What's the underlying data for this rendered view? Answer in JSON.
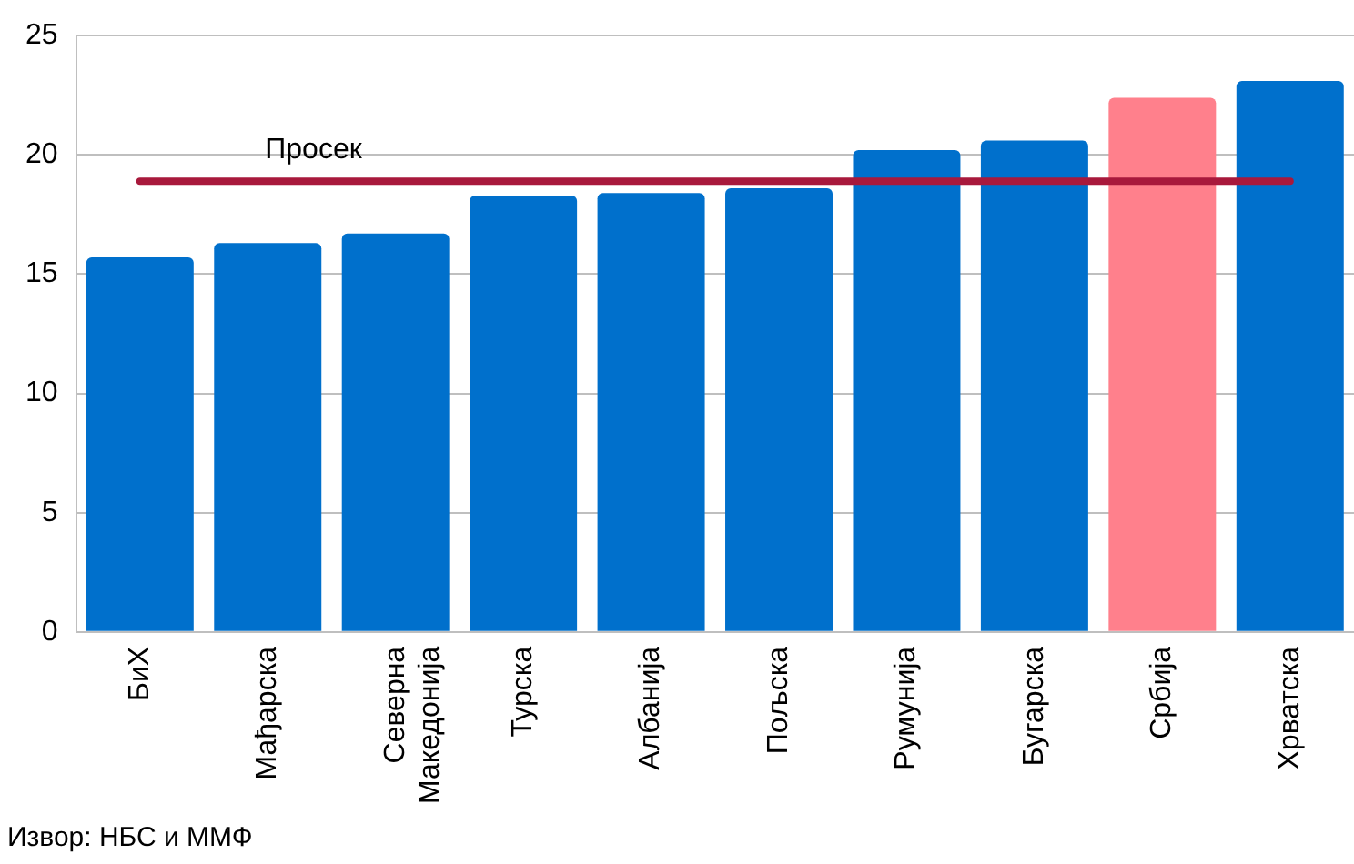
{
  "chart_data": {
    "type": "bar",
    "categories": [
      "БиХ",
      "Мађарска",
      "Северна Македонија",
      "Турска",
      "Албанија",
      "Пољска",
      "Румунија",
      "Бугарска",
      "Србија",
      "Хрватска"
    ],
    "values": [
      15.7,
      16.3,
      16.7,
      18.3,
      18.4,
      18.6,
      20.2,
      20.6,
      22.4,
      23.1
    ],
    "colors": [
      "#0070cc",
      "#0070cc",
      "#0070cc",
      "#0070cc",
      "#0070cc",
      "#0070cc",
      "#0070cc",
      "#0070cc",
      "#ff808c",
      "#0070cc"
    ],
    "ylim": [
      0,
      25
    ],
    "yticks": [
      0,
      5,
      10,
      15,
      20,
      25
    ],
    "grid": "y",
    "legend": false,
    "ref_lines": [
      {
        "axis": "y",
        "value": 18.9,
        "label": "Просек",
        "color": "#a8193c"
      }
    ],
    "annotations": [
      "Извор: НБС и ММФ"
    ]
  }
}
